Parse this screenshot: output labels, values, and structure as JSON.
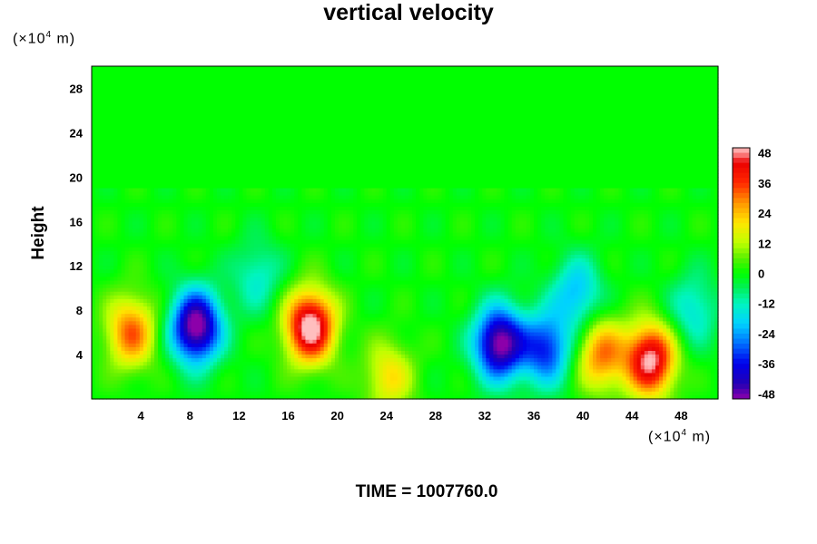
{
  "chart_data": {
    "type": "heatmap",
    "title": "vertical velocity",
    "ylabel": "Height",
    "x_unit_prefix": "(×10",
    "x_unit_exp": "4",
    "x_unit_suffix": " m)",
    "y_unit_prefix": "(×10",
    "y_unit_exp": "4",
    "y_unit_suffix": " m)",
    "xlim": [
      0,
      51
    ],
    "ylim": [
      0,
      30
    ],
    "x_ticks": [
      4,
      8,
      12,
      16,
      20,
      24,
      28,
      32,
      36,
      40,
      44,
      48
    ],
    "y_ticks": [
      4,
      8,
      12,
      16,
      20,
      24,
      28
    ],
    "colorbar": {
      "range": [
        -50,
        50
      ],
      "ticks": [
        48,
        36,
        24,
        12,
        0,
        -12,
        -24,
        -36,
        -48
      ]
    },
    "features": [
      {
        "x": 3.2,
        "y": 6.0,
        "value": 32
      },
      {
        "x": 8.5,
        "y": 6.5,
        "value": -54
      },
      {
        "x": 13.5,
        "y": 11.0,
        "value": -14
      },
      {
        "x": 17.8,
        "y": 6.5,
        "value": 54
      },
      {
        "x": 24.2,
        "y": 2.0,
        "value": 20
      },
      {
        "x": 33.2,
        "y": 5.0,
        "value": -52
      },
      {
        "x": 37.0,
        "y": 4.5,
        "value": -34
      },
      {
        "x": 39.5,
        "y": 9.5,
        "value": -22
      },
      {
        "x": 41.5,
        "y": 4.0,
        "value": 30
      },
      {
        "x": 45.5,
        "y": 3.5,
        "value": 50
      },
      {
        "x": 49.0,
        "y": 8.0,
        "value": -16
      }
    ],
    "footer": "TIME = 1007760.0"
  }
}
